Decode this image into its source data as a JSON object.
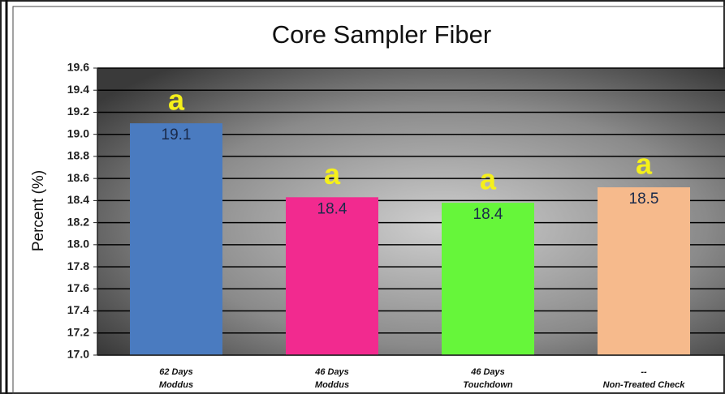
{
  "chart_data": {
    "type": "bar",
    "title": "Core Sampler Fiber",
    "y_label": "Percent (%)",
    "categories": [
      [
        "62 Days",
        "Moddus"
      ],
      [
        "46 Days",
        "Moddus"
      ],
      [
        "46 Days",
        "Touchdown"
      ],
      [
        "--",
        "Non-Treated Check"
      ]
    ],
    "values": [
      19.1,
      18.43,
      18.38,
      18.52
    ],
    "value_labels": [
      "19.1",
      "18.4",
      "18.4",
      "18.5"
    ],
    "letters": [
      "a",
      "a",
      "a",
      "a"
    ],
    "colors": [
      "#4a7bc0",
      "#f22a8f",
      "#66f63a",
      "#f6ba8c"
    ],
    "ylim": [
      17,
      19.6
    ],
    "yticks": [
      {
        "value": 17,
        "label": "17.0"
      },
      17.2,
      17.4,
      17.6,
      17.8,
      {
        "value": 18,
        "label": "18.0"
      },
      18.2,
      18.4,
      18.6,
      18.8,
      {
        "value": 19,
        "label": "19.0"
      },
      19.2,
      19.4,
      19.6
    ],
    "grid": true
  }
}
